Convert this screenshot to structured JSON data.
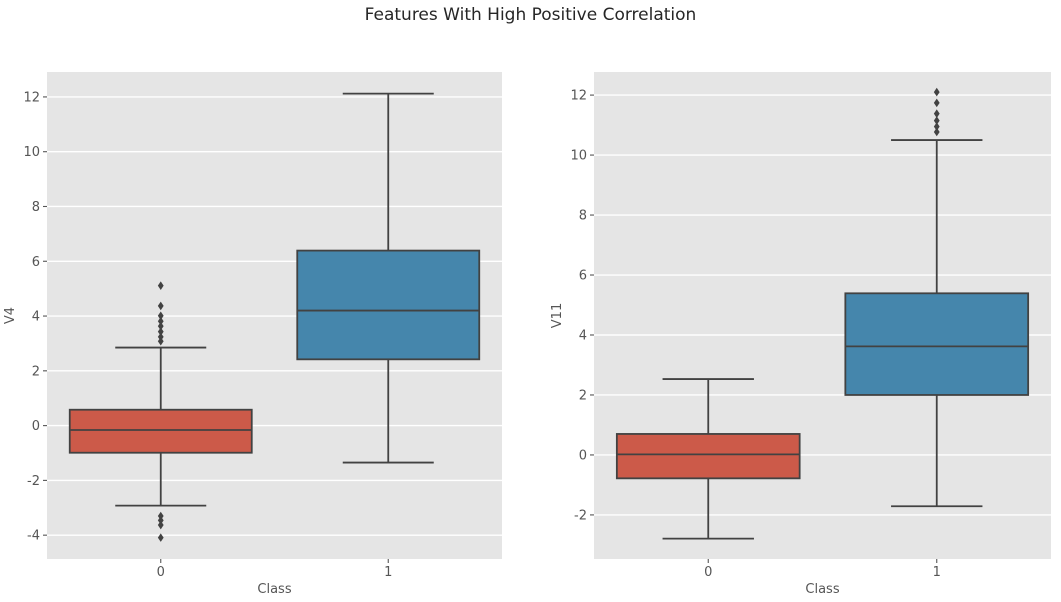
{
  "title": "Features With High Positive Correlation",
  "colors": {
    "figure_bg": "#ffffff",
    "axes_bg": "#e5e5e5",
    "grid": "#ffffff",
    "box_edge": "#424242",
    "tick_mark": "#555555",
    "tick_text": "#555555",
    "axis_label_text": "#555555",
    "title_text": "#262626",
    "class0_fill": "#cc5a49",
    "class1_fill": "#4586ac"
  },
  "chart_data": [
    {
      "type": "box",
      "name": "subplot-v4",
      "xlabel": "Class",
      "ylabel": "V4",
      "categories": [
        "0",
        "1"
      ],
      "xlim": [
        -0.5,
        1.5
      ],
      "ylim": [
        -4.87,
        12.91
      ],
      "yticks": [
        -4,
        -2,
        0,
        2,
        4,
        6,
        8,
        10,
        12
      ],
      "grid": true,
      "box_width": 0.8,
      "cap_width": 0.4,
      "series": [
        {
          "name": "class-0",
          "category": "0",
          "color_key": "class0_fill",
          "whisker_low": -2.92,
          "q1": -0.99,
          "median": -0.16,
          "q3": 0.58,
          "whisker_high": 2.85,
          "outliers": [
            5.11,
            4.37,
            4.01,
            3.81,
            3.63,
            3.43,
            3.24,
            3.08,
            -3.3,
            -3.46,
            -3.63,
            -4.09
          ]
        },
        {
          "name": "class-1",
          "category": "1",
          "color_key": "class1_fill",
          "whisker_low": -1.35,
          "q1": 2.42,
          "median": 4.2,
          "q3": 6.39,
          "whisker_high": 12.12,
          "outliers": []
        }
      ]
    },
    {
      "type": "box",
      "name": "subplot-v11",
      "xlabel": "Class",
      "ylabel": "V11",
      "categories": [
        "0",
        "1"
      ],
      "xlim": [
        -0.5,
        1.5
      ],
      "ylim": [
        -3.47,
        12.77
      ],
      "yticks": [
        -2,
        0,
        2,
        4,
        6,
        8,
        10,
        12
      ],
      "grid": true,
      "box_width": 0.8,
      "cap_width": 0.4,
      "series": [
        {
          "name": "class-0",
          "category": "0",
          "color_key": "class0_fill",
          "whisker_low": -2.79,
          "q1": -0.78,
          "median": 0.02,
          "q3": 0.7,
          "whisker_high": 2.53,
          "outliers": []
        },
        {
          "name": "class-1",
          "category": "1",
          "color_key": "class1_fill",
          "whisker_low": -1.71,
          "q1": 2.0,
          "median": 3.62,
          "q3": 5.39,
          "whisker_high": 10.5,
          "outliers": [
            10.77,
            10.95,
            11.15,
            11.38,
            11.74,
            12.1
          ]
        }
      ]
    }
  ]
}
